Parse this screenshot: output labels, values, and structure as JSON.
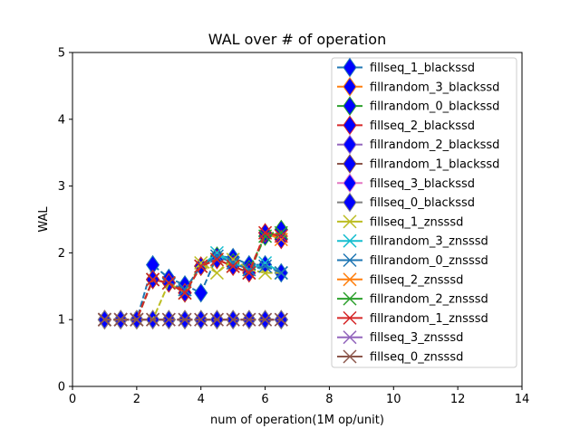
{
  "chart_data": {
    "type": "line",
    "title": "WAL over # of operation",
    "xlabel": "num of operation(1M op/unit)",
    "ylabel": "WAL",
    "xlim": [
      0,
      14
    ],
    "ylim": [
      0,
      5
    ],
    "xticks": [
      0,
      2,
      4,
      6,
      8,
      10,
      12,
      14
    ],
    "yticks": [
      0,
      1,
      2,
      3,
      4,
      5
    ],
    "grid": false,
    "legend_position": "upper-right",
    "x": [
      1.0,
      1.5,
      2.0,
      2.5,
      3.0,
      3.5,
      4.0,
      4.5,
      5.0,
      5.5,
      6.0,
      6.5
    ],
    "series": [
      {
        "name": "fillseq_1_blackssd",
        "color": "#1f77b4",
        "marker": "diamond",
        "values": [
          1,
          1,
          1,
          1.82,
          1.62,
          1.52,
          1.4,
          1.95,
          1.93,
          1.82,
          1.82,
          1.7
        ]
      },
      {
        "name": "fillrandom_3_blackssd",
        "color": "#ff7f0e",
        "marker": "diamond",
        "values": [
          1,
          1,
          1,
          1.6,
          1.55,
          1.4,
          1.8,
          1.9,
          1.8,
          1.7,
          2.3,
          2.25
        ]
      },
      {
        "name": "fillrandom_0_blackssd",
        "color": "#2ca02c",
        "marker": "diamond",
        "values": [
          1,
          1,
          1,
          1.6,
          1.55,
          1.4,
          1.8,
          1.95,
          1.85,
          1.75,
          2.25,
          2.35
        ]
      },
      {
        "name": "fillseq_2_blackssd",
        "color": "#d62728",
        "marker": "diamond",
        "values": [
          1,
          1,
          1,
          1.6,
          1.55,
          1.4,
          1.8,
          1.9,
          1.8,
          1.7,
          2.3,
          2.2
        ]
      },
      {
        "name": "fillrandom_2_blackssd",
        "color": "#9467bd",
        "marker": "diamond",
        "values": [
          1,
          1,
          1,
          1,
          1,
          1,
          1,
          1,
          1,
          1,
          1,
          1
        ]
      },
      {
        "name": "fillrandom_1_blackssd",
        "color": "#8c564b",
        "marker": "diamond",
        "values": [
          1,
          1,
          1,
          1,
          1,
          1,
          1,
          1,
          1,
          1,
          1,
          1
        ]
      },
      {
        "name": "fillseq_3_blackssd",
        "color": "#e377c2",
        "marker": "diamond",
        "values": [
          1,
          1,
          1,
          1,
          1,
          1,
          1,
          1,
          1,
          1,
          1,
          1
        ]
      },
      {
        "name": "fillseq_0_blackssd",
        "color": "#7f7f7f",
        "marker": "diamond",
        "values": [
          1,
          1,
          1,
          1,
          1,
          1,
          1,
          1,
          1,
          1,
          1,
          1
        ]
      },
      {
        "name": "fillseq_1_znsssd",
        "color": "#bcbd22",
        "marker": "x",
        "values": [
          1,
          1,
          1,
          1,
          1.55,
          1.4,
          1.85,
          1.7,
          1.9,
          1.75,
          1.7,
          1.7
        ]
      },
      {
        "name": "fillrandom_3_znsssd",
        "color": "#17becf",
        "marker": "x",
        "values": [
          1,
          1,
          1,
          1.6,
          1.55,
          1.45,
          1.8,
          2.0,
          1.85,
          1.75,
          1.85,
          1.7
        ]
      },
      {
        "name": "fillrandom_0_znsssd",
        "color": "#1f77b4",
        "marker": "x",
        "values": [
          1,
          1,
          1,
          1.6,
          1.55,
          1.45,
          1.8,
          1.95,
          1.85,
          1.75,
          1.8,
          1.7
        ]
      },
      {
        "name": "fillseq_2_znsssd",
        "color": "#ff7f0e",
        "marker": "x",
        "values": [
          1,
          1,
          1,
          1.6,
          1.55,
          1.4,
          1.8,
          1.9,
          1.8,
          1.7,
          2.3,
          2.2
        ]
      },
      {
        "name": "fillrandom_2_znsssd",
        "color": "#2ca02c",
        "marker": "x",
        "values": [
          1,
          1,
          1,
          1.6,
          1.55,
          1.4,
          1.8,
          1.9,
          1.8,
          1.7,
          2.25,
          2.3
        ]
      },
      {
        "name": "fillrandom_1_znsssd",
        "color": "#d62728",
        "marker": "x",
        "values": [
          1,
          1,
          1,
          1.6,
          1.55,
          1.4,
          1.8,
          1.9,
          1.8,
          1.7,
          2.3,
          2.25
        ]
      },
      {
        "name": "fillseq_3_znsssd",
        "color": "#9467bd",
        "marker": "x",
        "values": [
          1,
          1,
          1,
          1,
          1,
          1,
          1,
          1,
          1,
          1,
          1,
          1
        ]
      },
      {
        "name": "fillseq_0_znsssd",
        "color": "#8c564b",
        "marker": "x",
        "values": [
          1,
          1,
          1,
          1,
          1,
          1,
          1,
          1,
          1,
          1,
          1,
          1
        ]
      }
    ]
  }
}
